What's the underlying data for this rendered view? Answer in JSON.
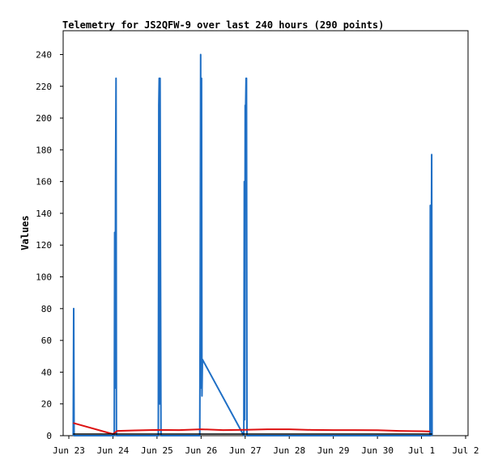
{
  "chart_data": {
    "type": "line",
    "title": "Telemetry for JS2QFW-9 over last 240 hours (290 points)",
    "xlabel": "",
    "ylabel": "Values",
    "x_ticks": [
      "Jun 23",
      "Jun 24",
      "Jun 25",
      "Jun 26",
      "Jun 27",
      "Jun 28",
      "Jun 29",
      "Jun 30",
      "Jul 1",
      "Jul 2"
    ],
    "y_ticks": [
      0,
      20,
      40,
      60,
      80,
      100,
      120,
      140,
      160,
      180,
      200,
      220,
      240
    ],
    "xlim_days": [
      0,
      9
    ],
    "ylim": [
      0,
      255
    ],
    "grid": false,
    "legend": "none",
    "colors": {
      "blue": "#1f6fc5",
      "red": "#dd1111",
      "black": "#000000"
    },
    "series": [
      {
        "color": "blue",
        "points": [
          [
            0.1,
            0
          ],
          [
            0.11,
            80
          ],
          [
            0.12,
            0
          ],
          [
            1.03,
            0
          ],
          [
            1.04,
            128
          ],
          [
            1.05,
            30
          ],
          [
            1.06,
            160
          ],
          [
            1.07,
            225
          ],
          [
            1.08,
            0
          ],
          [
            2.03,
            0
          ],
          [
            2.04,
            208
          ],
          [
            2.05,
            225
          ],
          [
            2.06,
            20
          ],
          [
            2.07,
            225
          ],
          [
            2.08,
            112
          ],
          [
            2.09,
            0
          ],
          [
            2.97,
            0
          ],
          [
            2.98,
            80
          ],
          [
            2.99,
            240
          ],
          [
            3.0,
            30
          ],
          [
            3.01,
            225
          ],
          [
            3.02,
            25
          ],
          [
            3.03,
            48
          ],
          [
            3.97,
            0
          ],
          [
            3.98,
            160
          ],
          [
            3.99,
            10
          ],
          [
            4.0,
            208
          ],
          [
            4.01,
            205
          ],
          [
            4.02,
            225
          ],
          [
            4.03,
            225
          ],
          [
            4.04,
            0
          ],
          [
            8.19,
            0
          ],
          [
            8.2,
            145
          ],
          [
            8.21,
            0
          ],
          [
            8.22,
            88
          ],
          [
            8.23,
            177
          ],
          [
            8.24,
            0
          ]
        ]
      },
      {
        "color": "red",
        "points": [
          [
            0.1,
            8
          ],
          [
            1.0,
            1
          ],
          [
            1.1,
            3
          ],
          [
            1.5,
            3.3
          ],
          [
            2.0,
            3.6
          ],
          [
            2.5,
            3.5
          ],
          [
            3.0,
            4
          ],
          [
            3.5,
            3.5
          ],
          [
            4.0,
            3.7
          ],
          [
            4.5,
            4
          ],
          [
            5.0,
            4
          ],
          [
            5.5,
            3.6
          ],
          [
            6.0,
            3.5
          ],
          [
            6.5,
            3.5
          ],
          [
            7.0,
            3.4
          ],
          [
            7.5,
            3
          ],
          [
            8.0,
            2.8
          ],
          [
            8.2,
            2.6
          ]
        ]
      },
      {
        "color": "black",
        "points": [
          [
            0.1,
            1
          ],
          [
            1.0,
            1
          ],
          [
            2.0,
            1
          ],
          [
            3.0,
            1
          ],
          [
            4.0,
            1
          ],
          [
            5.0,
            1
          ],
          [
            6.0,
            1
          ],
          [
            7.0,
            1
          ],
          [
            8.0,
            1
          ],
          [
            8.24,
            1
          ]
        ]
      }
    ]
  }
}
